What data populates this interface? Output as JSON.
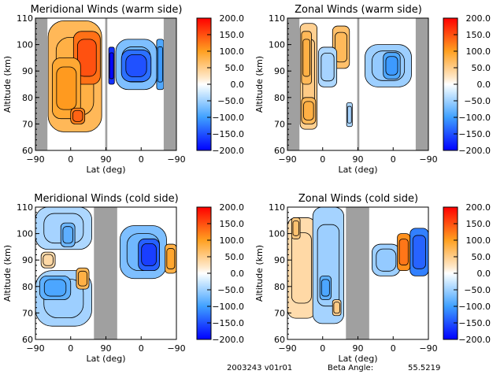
{
  "footer": {
    "date_version": "2003243 v01r01",
    "beta_label": "Beta Angle:",
    "beta_value": "55.5219"
  },
  "chart_data": [
    {
      "type": "heatmap",
      "id": "mer-warm",
      "title": "Meridional Winds (warm side)",
      "xlabel": "Lat (deg)",
      "ylabel": "Altitude (km)",
      "xticks": [
        "-90",
        "0",
        "90",
        "0",
        "-90"
      ],
      "yticks": [
        60,
        70,
        80,
        90,
        100,
        110
      ],
      "ylim": [
        60,
        110
      ],
      "x_positions": [
        0,
        0.25,
        0.5,
        0.75,
        1.0
      ],
      "gray_bands": [
        [
          0,
          0.085
        ],
        [
          0.495,
          0.51
        ],
        [
          0.91,
          1.0
        ]
      ],
      "colorbar": {
        "range": [
          -200,
          200
        ],
        "ticks": [
          "200.0",
          "150.0",
          "100.0",
          "50.0",
          "0.0",
          "-50.0",
          "-100.0",
          "-150.0",
          "-200.0"
        ]
      },
      "blobs": [
        {
          "x": 0.09,
          "w": 0.38,
          "y0": 67,
          "y1": 109,
          "v": 70
        },
        {
          "x": 0.27,
          "w": 0.19,
          "y0": 85,
          "y1": 105,
          "v": 130
        },
        {
          "x": 0.12,
          "w": 0.2,
          "y0": 72,
          "y1": 95,
          "v": 90
        },
        {
          "x": 0.25,
          "w": 0.1,
          "y0": 70,
          "y1": 76,
          "v": 120
        },
        {
          "x": 0.57,
          "w": 0.29,
          "y0": 83,
          "y1": 102,
          "v": -60
        },
        {
          "x": 0.61,
          "w": 0.21,
          "y0": 86,
          "y1": 98,
          "v": -130
        },
        {
          "x": 0.52,
          "w": 0.04,
          "y0": 85,
          "y1": 99,
          "v": -170
        },
        {
          "x": 0.86,
          "w": 0.05,
          "y0": 83,
          "y1": 102,
          "v": -90
        }
      ]
    },
    {
      "type": "heatmap",
      "id": "zon-warm",
      "title": "Zonal Winds (warm side)",
      "xlabel": "Lat (deg)",
      "ylabel": "Altitude (km)",
      "xticks": [
        "-90",
        "0",
        "90",
        "0",
        "-90"
      ],
      "yticks": [
        60,
        70,
        80,
        90,
        100,
        110
      ],
      "ylim": [
        60,
        110
      ],
      "x_positions": [
        0,
        0.25,
        0.5,
        0.75,
        1.0
      ],
      "gray_bands": [
        [
          0,
          0.085
        ],
        [
          0.495,
          0.51
        ],
        [
          0.91,
          1.0
        ]
      ],
      "colorbar": {
        "range": [
          -200,
          200
        ],
        "ticks": [
          "200.0",
          "150.0",
          "100.0",
          "50.0",
          "0.0",
          "-50.0",
          "-100.0",
          "-150.0",
          "-200.0"
        ]
      },
      "blobs": [
        {
          "x": 0.09,
          "w": 0.12,
          "y0": 68,
          "y1": 108,
          "v": 40
        },
        {
          "x": 0.1,
          "w": 0.07,
          "y0": 85,
          "y1": 105,
          "v": 70
        },
        {
          "x": 0.1,
          "w": 0.1,
          "y0": 70,
          "y1": 80,
          "v": 70
        },
        {
          "x": 0.32,
          "w": 0.12,
          "y0": 91,
          "y1": 107,
          "v": 60
        },
        {
          "x": 0.22,
          "w": 0.13,
          "y0": 84,
          "y1": 99,
          "v": -30
        },
        {
          "x": 0.55,
          "w": 0.33,
          "y0": 84,
          "y1": 100,
          "v": -40
        },
        {
          "x": 0.68,
          "w": 0.12,
          "y0": 87,
          "y1": 97,
          "v": -90
        },
        {
          "x": 0.42,
          "w": 0.04,
          "y0": 69,
          "y1": 78,
          "v": -30
        }
      ]
    },
    {
      "type": "heatmap",
      "id": "mer-cold",
      "title": "Meridional Winds (cold side)",
      "xlabel": "Lat (deg)",
      "ylabel": "Altitude (km)",
      "xticks": [
        "-90",
        "0",
        "90",
        "0",
        "-90"
      ],
      "yticks": [
        60,
        70,
        80,
        90,
        100,
        110
      ],
      "ylim": [
        60,
        110
      ],
      "x_positions": [
        0,
        0.25,
        0.5,
        0.75,
        1.0
      ],
      "gray_bands": [
        [
          0.415,
          0.58
        ]
      ],
      "colorbar": {
        "range": [
          -200,
          200
        ],
        "ticks": [
          "200.0",
          "150.0",
          "100.0",
          "50.0",
          "0.0",
          "-50.0",
          "-100.0",
          "-150.0",
          "-200.0"
        ]
      },
      "blobs": [
        {
          "x": 0.0,
          "w": 0.4,
          "y0": 94,
          "y1": 110,
          "v": -30
        },
        {
          "x": 0.18,
          "w": 0.1,
          "y0": 95,
          "y1": 104,
          "v": -70
        },
        {
          "x": 0.0,
          "w": 0.4,
          "y0": 65,
          "y1": 86,
          "v": -35
        },
        {
          "x": 0.03,
          "w": 0.22,
          "y0": 75,
          "y1": 84,
          "v": -80
        },
        {
          "x": 0.29,
          "w": 0.09,
          "y0": 79,
          "y1": 87,
          "v": 70
        },
        {
          "x": 0.04,
          "w": 0.1,
          "y0": 87,
          "y1": 93,
          "v": 25
        },
        {
          "x": 0.6,
          "w": 0.33,
          "y0": 83,
          "y1": 103,
          "v": -60
        },
        {
          "x": 0.73,
          "w": 0.15,
          "y0": 86,
          "y1": 98,
          "v": -140
        },
        {
          "x": 0.92,
          "w": 0.08,
          "y0": 85,
          "y1": 96,
          "v": 80
        }
      ]
    },
    {
      "type": "heatmap",
      "id": "zon-cold",
      "title": "Zonal Winds (cold side)",
      "xlabel": "Lat (deg)",
      "ylabel": "Altitude (km)",
      "xticks": [
        "-90",
        "0",
        "90",
        "0",
        "-90"
      ],
      "yticks": [
        60,
        70,
        80,
        90,
        100,
        110
      ],
      "ylim": [
        60,
        110
      ],
      "x_positions": [
        0,
        0.25,
        0.5,
        0.75,
        1.0
      ],
      "gray_bands": [
        [
          0.415,
          0.58
        ]
      ],
      "colorbar": {
        "range": [
          -200,
          200
        ],
        "ticks": [
          "200.0",
          "150.0",
          "100.0",
          "50.0",
          "0.0",
          "-50.0",
          "-100.0",
          "-150.0",
          "-200.0"
        ]
      },
      "blobs": [
        {
          "x": 0.0,
          "w": 0.2,
          "y0": 68,
          "y1": 106,
          "v": 25
        },
        {
          "x": 0.03,
          "w": 0.06,
          "y0": 98,
          "y1": 106,
          "v": 50
        },
        {
          "x": 0.18,
          "w": 0.22,
          "y0": 66,
          "y1": 110,
          "v": -35
        },
        {
          "x": 0.23,
          "w": 0.08,
          "y0": 75,
          "y1": 84,
          "v": -80
        },
        {
          "x": 0.32,
          "w": 0.06,
          "y0": 69,
          "y1": 75,
          "v": 40
        },
        {
          "x": 0.6,
          "w": 0.2,
          "y0": 84,
          "y1": 96,
          "v": -40
        },
        {
          "x": 0.78,
          "w": 0.09,
          "y0": 86,
          "y1": 100,
          "v": 110
        },
        {
          "x": 0.87,
          "w": 0.13,
          "y0": 84,
          "y1": 102,
          "v": -120
        }
      ]
    }
  ]
}
